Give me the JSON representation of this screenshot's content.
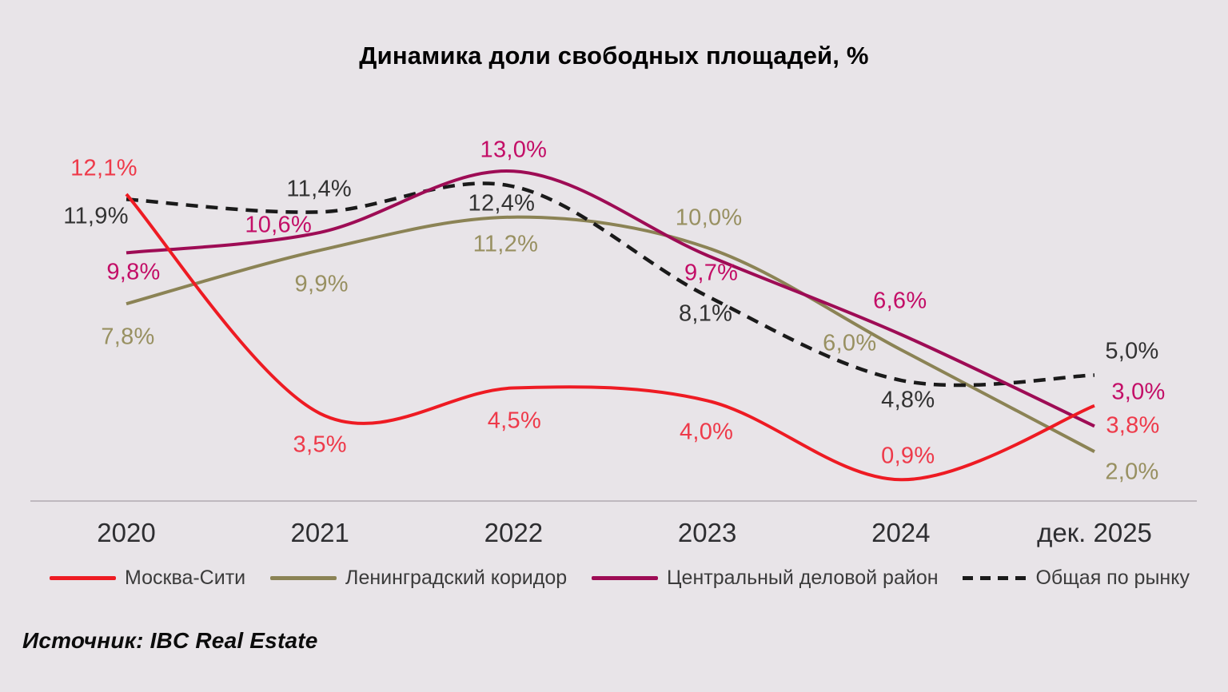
{
  "title": "Динамика доли свободных площадей, %",
  "source": "Источник: IBC Real Estate",
  "colors": {
    "background": "#e8e4e8",
    "axis_line": "#b0aab0",
    "tick_text": "#2e2e31",
    "legend_text": "#3b3b3b"
  },
  "chart_data": {
    "type": "line",
    "title": "Динамика доли свободных площадей, %",
    "xlabel": "",
    "ylabel": "",
    "categories": [
      "2020",
      "2021",
      "2022",
      "2023",
      "2024",
      "дек. 2025"
    ],
    "series": [
      {
        "name": "Москва-Сити",
        "values": [
          12.1,
          3.5,
          4.5,
          4.0,
          0.9,
          3.8
        ],
        "color": "#ee1b23",
        "label_color": "#ee3a4a",
        "dashed": false
      },
      {
        "name": "Ленинградский коридор",
        "values": [
          7.8,
          9.9,
          11.2,
          10.0,
          6.0,
          2.0
        ],
        "color": "#8b8355",
        "label_color": "#989061",
        "dashed": false
      },
      {
        "name": "Центральный деловой район",
        "values": [
          9.8,
          10.6,
          13.0,
          9.7,
          6.6,
          3.0
        ],
        "color": "#9e0c55",
        "label_color": "#c30e67",
        "dashed": false
      },
      {
        "name": "Общая по рынку",
        "values": [
          11.9,
          11.4,
          12.4,
          8.1,
          4.8,
          5.0
        ],
        "color": "#1a1a1a",
        "label_color": "#323232",
        "dashed": true
      }
    ],
    "value_suffix": "%",
    "decimal_separator": ",",
    "ylim": [
      0,
      17
    ],
    "grid": false,
    "legend_position": "bottom",
    "label_offsets": [
      [
        [
          -28,
          -32
        ],
        [
          0,
          40
        ],
        [
          1,
          42
        ],
        [
          -1,
          40
        ],
        [
          9,
          -29
        ],
        [
          48,
          25
        ]
      ],
      [
        [
          2,
          42
        ],
        [
          2,
          43
        ],
        [
          -10,
          34
        ],
        [
          2,
          -37
        ],
        [
          -64,
          -8
        ],
        [
          47,
          26
        ]
      ],
      [
        [
          9,
          25
        ],
        [
          -52,
          -9
        ],
        [
          0,
          -26
        ],
        [
          5,
          22
        ],
        [
          -1,
          -41
        ],
        [
          55,
          -42
        ]
      ],
      [
        [
          -38,
          22
        ],
        [
          -1,
          -28
        ],
        [
          -15,
          22
        ],
        [
          -2,
          22
        ],
        [
          9,
          25
        ],
        [
          47,
          -30
        ]
      ]
    ]
  }
}
